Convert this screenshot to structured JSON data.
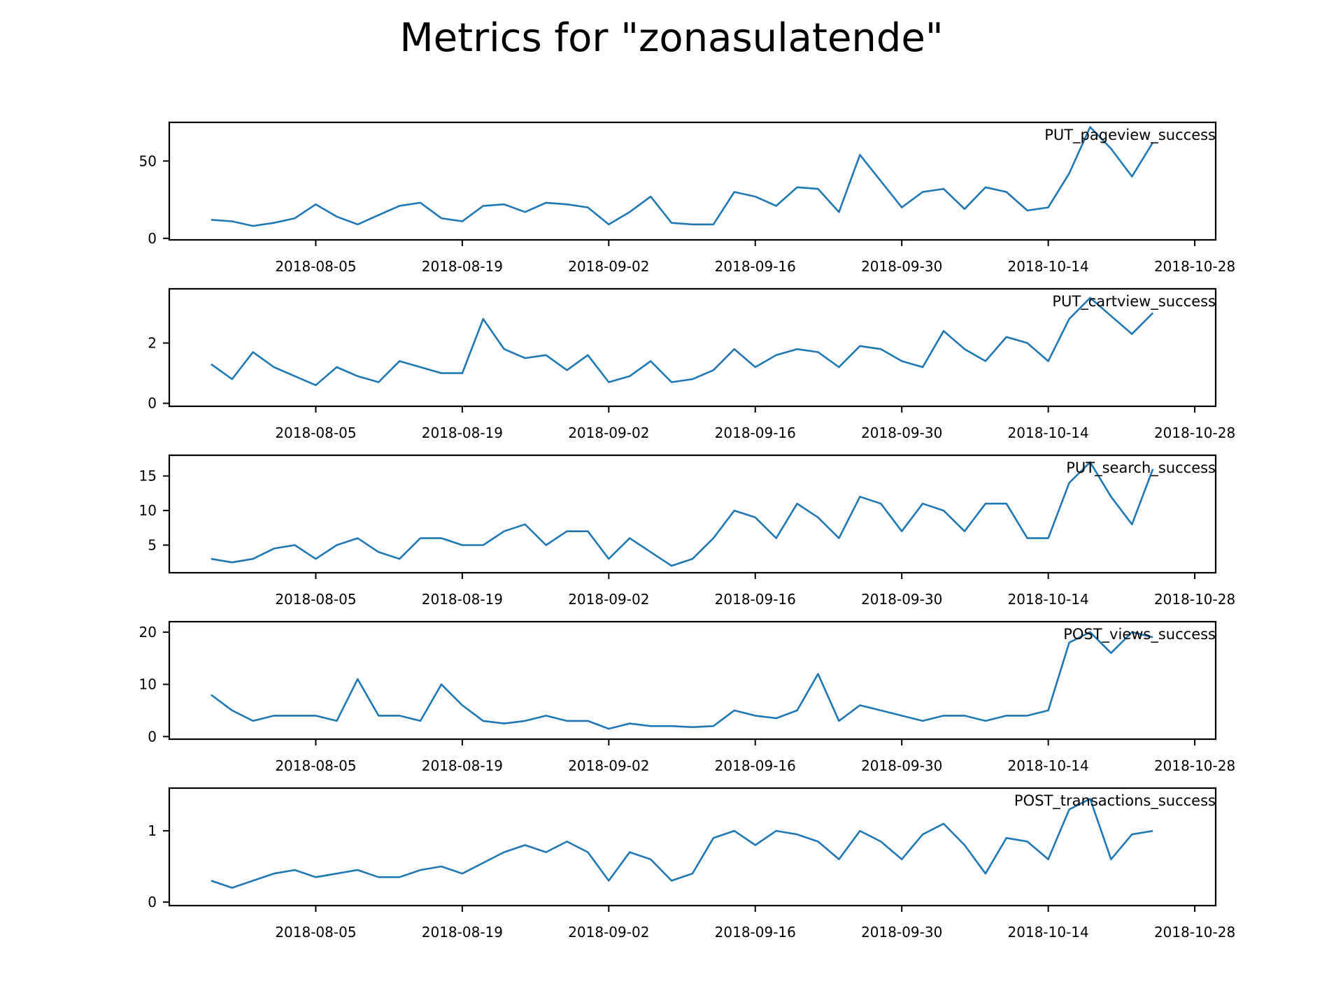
{
  "figure": {
    "title": "Metrics for \"zonasulatende\""
  },
  "colors": {
    "line": "#1f77b4",
    "axes": "#000000",
    "background": "#ffffff"
  },
  "chart_data": [
    {
      "type": "line",
      "title": "PUT_pageview_success",
      "xlabel": "",
      "ylabel": "",
      "x_ticks": [
        "2018-08-05",
        "2018-08-19",
        "2018-09-02",
        "2018-09-16",
        "2018-09-30",
        "2018-10-14",
        "2018-10-28"
      ],
      "y_ticks": [
        0,
        50
      ],
      "xlim": [
        "2018-07-22",
        "2018-10-30"
      ],
      "ylim": [
        -1,
        75
      ],
      "grid": false,
      "series": [
        {
          "x": [
            "2018-07-26",
            "2018-07-28",
            "2018-07-30",
            "2018-08-01",
            "2018-08-03",
            "2018-08-05",
            "2018-08-07",
            "2018-08-09",
            "2018-08-11",
            "2018-08-13",
            "2018-08-15",
            "2018-08-17",
            "2018-08-19",
            "2018-08-21",
            "2018-08-23",
            "2018-08-25",
            "2018-08-27",
            "2018-08-29",
            "2018-08-31",
            "2018-09-02",
            "2018-09-04",
            "2018-09-06",
            "2018-09-08",
            "2018-09-10",
            "2018-09-12",
            "2018-09-14",
            "2018-09-16",
            "2018-09-18",
            "2018-09-20",
            "2018-09-22",
            "2018-09-24",
            "2018-09-26",
            "2018-09-28",
            "2018-09-30",
            "2018-10-02",
            "2018-10-04",
            "2018-10-06",
            "2018-10-08",
            "2018-10-10",
            "2018-10-12",
            "2018-10-14",
            "2018-10-16",
            "2018-10-18",
            "2018-10-20",
            "2018-10-22",
            "2018-10-24"
          ],
          "y": [
            12,
            11,
            8,
            10,
            13,
            22,
            14,
            9,
            15,
            21,
            23,
            13,
            11,
            21,
            22,
            17,
            23,
            22,
            20,
            9,
            17,
            27,
            10,
            9,
            9,
            30,
            27,
            21,
            33,
            32,
            17,
            54,
            37,
            20,
            30,
            32,
            19,
            33,
            30,
            18,
            20,
            42,
            72,
            58,
            40,
            62
          ]
        }
      ]
    },
    {
      "type": "line",
      "title": "PUT_cartview_success",
      "xlabel": "",
      "ylabel": "",
      "x_ticks": [
        "2018-08-05",
        "2018-08-19",
        "2018-09-02",
        "2018-09-16",
        "2018-09-30",
        "2018-10-14",
        "2018-10-28"
      ],
      "y_ticks": [
        0,
        2
      ],
      "xlim": [
        "2018-07-22",
        "2018-10-30"
      ],
      "ylim": [
        -0.1,
        3.8
      ],
      "grid": false,
      "series": [
        {
          "x": [
            "2018-07-26",
            "2018-07-28",
            "2018-07-30",
            "2018-08-01",
            "2018-08-03",
            "2018-08-05",
            "2018-08-07",
            "2018-08-09",
            "2018-08-11",
            "2018-08-13",
            "2018-08-15",
            "2018-08-17",
            "2018-08-19",
            "2018-08-21",
            "2018-08-23",
            "2018-08-25",
            "2018-08-27",
            "2018-08-29",
            "2018-08-31",
            "2018-09-02",
            "2018-09-04",
            "2018-09-06",
            "2018-09-08",
            "2018-09-10",
            "2018-09-12",
            "2018-09-14",
            "2018-09-16",
            "2018-09-18",
            "2018-09-20",
            "2018-09-22",
            "2018-09-24",
            "2018-09-26",
            "2018-09-28",
            "2018-09-30",
            "2018-10-02",
            "2018-10-04",
            "2018-10-06",
            "2018-10-08",
            "2018-10-10",
            "2018-10-12",
            "2018-10-14",
            "2018-10-16",
            "2018-10-18",
            "2018-10-20",
            "2018-10-22",
            "2018-10-24"
          ],
          "y": [
            1.3,
            0.8,
            1.7,
            1.2,
            0.9,
            0.6,
            1.2,
            0.9,
            0.7,
            1.4,
            1.2,
            1.0,
            1.0,
            2.8,
            1.8,
            1.5,
            1.6,
            1.1,
            1.6,
            0.7,
            0.9,
            1.4,
            0.7,
            0.8,
            1.1,
            1.8,
            1.2,
            1.6,
            1.8,
            1.7,
            1.2,
            1.9,
            1.8,
            1.4,
            1.2,
            2.4,
            1.8,
            1.4,
            2.2,
            2.0,
            1.4,
            2.8,
            3.5,
            2.9,
            2.3,
            3.0
          ]
        }
      ]
    },
    {
      "type": "line",
      "title": "PUT_search_success",
      "xlabel": "",
      "ylabel": "",
      "x_ticks": [
        "2018-08-05",
        "2018-08-19",
        "2018-09-02",
        "2018-09-16",
        "2018-09-30",
        "2018-10-14",
        "2018-10-28"
      ],
      "y_ticks": [
        5,
        10,
        15
      ],
      "xlim": [
        "2018-07-22",
        "2018-10-30"
      ],
      "ylim": [
        1,
        18
      ],
      "grid": false,
      "series": [
        {
          "x": [
            "2018-07-26",
            "2018-07-28",
            "2018-07-30",
            "2018-08-01",
            "2018-08-03",
            "2018-08-05",
            "2018-08-07",
            "2018-08-09",
            "2018-08-11",
            "2018-08-13",
            "2018-08-15",
            "2018-08-17",
            "2018-08-19",
            "2018-08-21",
            "2018-08-23",
            "2018-08-25",
            "2018-08-27",
            "2018-08-29",
            "2018-08-31",
            "2018-09-02",
            "2018-09-04",
            "2018-09-06",
            "2018-09-08",
            "2018-09-10",
            "2018-09-12",
            "2018-09-14",
            "2018-09-16",
            "2018-09-18",
            "2018-09-20",
            "2018-09-22",
            "2018-09-24",
            "2018-09-26",
            "2018-09-28",
            "2018-09-30",
            "2018-10-02",
            "2018-10-04",
            "2018-10-06",
            "2018-10-08",
            "2018-10-10",
            "2018-10-12",
            "2018-10-14",
            "2018-10-16",
            "2018-10-18",
            "2018-10-20",
            "2018-10-22",
            "2018-10-24"
          ],
          "y": [
            3,
            2.5,
            3,
            4.5,
            5,
            3,
            5,
            6,
            4,
            3,
            6,
            6,
            5,
            5,
            7,
            8,
            5,
            7,
            7,
            3,
            6,
            4,
            2,
            3,
            6,
            10,
            9,
            6,
            11,
            9,
            6,
            12,
            11,
            7,
            11,
            10,
            7,
            11,
            11,
            6,
            6,
            14,
            17,
            12,
            8,
            16
          ]
        }
      ]
    },
    {
      "type": "line",
      "title": "POST_views_success",
      "xlabel": "",
      "ylabel": "",
      "x_ticks": [
        "2018-08-05",
        "2018-08-19",
        "2018-09-02",
        "2018-09-16",
        "2018-09-30",
        "2018-10-14",
        "2018-10-28"
      ],
      "y_ticks": [
        0,
        10,
        20
      ],
      "xlim": [
        "2018-07-22",
        "2018-10-30"
      ],
      "ylim": [
        -0.5,
        22
      ],
      "grid": false,
      "series": [
        {
          "x": [
            "2018-07-26",
            "2018-07-28",
            "2018-07-30",
            "2018-08-01",
            "2018-08-03",
            "2018-08-05",
            "2018-08-07",
            "2018-08-09",
            "2018-08-11",
            "2018-08-13",
            "2018-08-15",
            "2018-08-17",
            "2018-08-19",
            "2018-08-21",
            "2018-08-23",
            "2018-08-25",
            "2018-08-27",
            "2018-08-29",
            "2018-08-31",
            "2018-09-02",
            "2018-09-04",
            "2018-09-06",
            "2018-09-08",
            "2018-09-10",
            "2018-09-12",
            "2018-09-14",
            "2018-09-16",
            "2018-09-18",
            "2018-09-20",
            "2018-09-22",
            "2018-09-24",
            "2018-09-26",
            "2018-09-28",
            "2018-09-30",
            "2018-10-02",
            "2018-10-04",
            "2018-10-06",
            "2018-10-08",
            "2018-10-10",
            "2018-10-12",
            "2018-10-14",
            "2018-10-16",
            "2018-10-18",
            "2018-10-20",
            "2018-10-22",
            "2018-10-24"
          ],
          "y": [
            8,
            5,
            3,
            4,
            4,
            4,
            3,
            11,
            4,
            4,
            3,
            10,
            6,
            3,
            2.5,
            3,
            4,
            3,
            3,
            1.5,
            2.5,
            2,
            2,
            1.8,
            2,
            5,
            4,
            3.5,
            5,
            12,
            3,
            6,
            5,
            4,
            3,
            4,
            4,
            3,
            4,
            4,
            5,
            18,
            20,
            16,
            20,
            19
          ]
        }
      ]
    },
    {
      "type": "line",
      "title": "POST_transactions_success",
      "xlabel": "",
      "ylabel": "",
      "x_ticks": [
        "2018-08-05",
        "2018-08-19",
        "2018-09-02",
        "2018-09-16",
        "2018-09-30",
        "2018-10-14",
        "2018-10-28"
      ],
      "y_ticks": [
        0,
        1
      ],
      "xlim": [
        "2018-07-22",
        "2018-10-30"
      ],
      "ylim": [
        -0.05,
        1.6
      ],
      "grid": false,
      "series": [
        {
          "x": [
            "2018-07-26",
            "2018-07-28",
            "2018-07-30",
            "2018-08-01",
            "2018-08-03",
            "2018-08-05",
            "2018-08-07",
            "2018-08-09",
            "2018-08-11",
            "2018-08-13",
            "2018-08-15",
            "2018-08-17",
            "2018-08-19",
            "2018-08-21",
            "2018-08-23",
            "2018-08-25",
            "2018-08-27",
            "2018-08-29",
            "2018-08-31",
            "2018-09-02",
            "2018-09-04",
            "2018-09-06",
            "2018-09-08",
            "2018-09-10",
            "2018-09-12",
            "2018-09-14",
            "2018-09-16",
            "2018-09-18",
            "2018-09-20",
            "2018-09-22",
            "2018-09-24",
            "2018-09-26",
            "2018-09-28",
            "2018-09-30",
            "2018-10-02",
            "2018-10-04",
            "2018-10-06",
            "2018-10-08",
            "2018-10-10",
            "2018-10-12",
            "2018-10-14",
            "2018-10-16",
            "2018-10-18",
            "2018-10-20",
            "2018-10-22",
            "2018-10-24"
          ],
          "y": [
            0.3,
            0.2,
            0.3,
            0.4,
            0.45,
            0.35,
            0.4,
            0.45,
            0.35,
            0.35,
            0.45,
            0.5,
            0.4,
            0.55,
            0.7,
            0.8,
            0.7,
            0.85,
            0.7,
            0.3,
            0.7,
            0.6,
            0.3,
            0.4,
            0.9,
            1.0,
            0.8,
            1.0,
            0.95,
            0.85,
            0.6,
            1.0,
            0.85,
            0.6,
            0.95,
            1.1,
            0.8,
            0.4,
            0.9,
            0.85,
            0.6,
            1.3,
            1.45,
            0.6,
            0.95,
            1.0
          ]
        }
      ]
    }
  ]
}
